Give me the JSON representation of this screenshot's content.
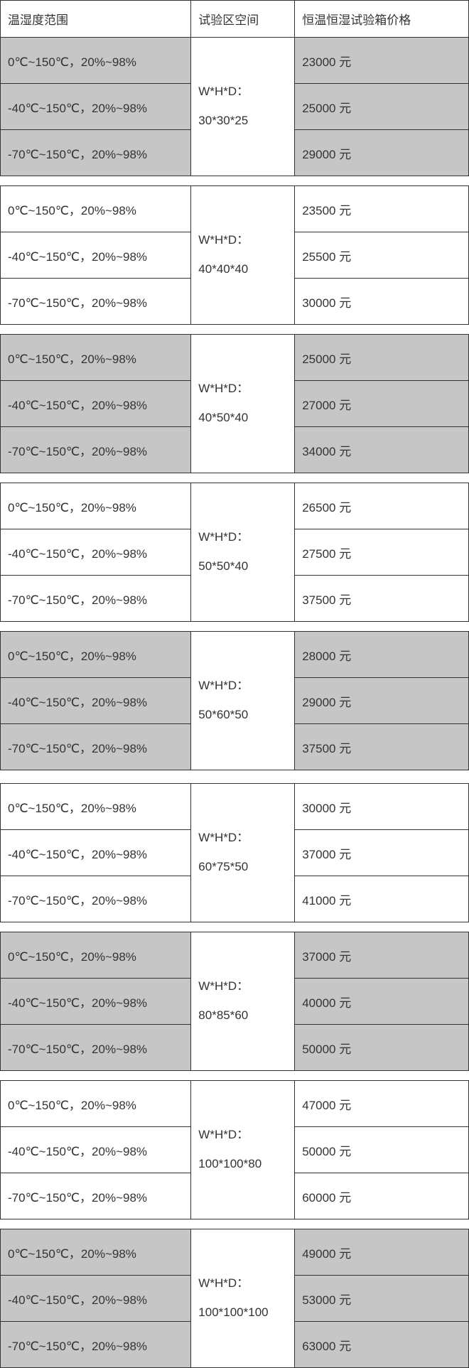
{
  "headers": {
    "range": "温湿度范围",
    "space": "试验区空间",
    "price": "恒温恒湿试验箱价格"
  },
  "ranges": {
    "r0": "0℃~150℃，20%~98%",
    "r40": "-40℃~150℃，20%~98%",
    "r70": "-70℃~150℃，20%~98%"
  },
  "space_prefix": "W*H*D：",
  "groups_a": [
    {
      "dim": "30*30*25",
      "prices": [
        "23000 元",
        "25000 元",
        "29000 元"
      ]
    },
    {
      "dim": "40*40*40",
      "prices": [
        "23500 元",
        "25500 元",
        "30000 元"
      ]
    },
    {
      "dim": "40*50*40",
      "prices": [
        "25000 元",
        "27000 元",
        "34000 元"
      ]
    },
    {
      "dim": "50*50*40",
      "prices": [
        "26500 元",
        "27500 元",
        "37500 元"
      ]
    },
    {
      "dim": "50*60*50",
      "prices": [
        "28000 元",
        "29000 元",
        "37500 元"
      ]
    }
  ],
  "groups_b": [
    {
      "dim": "60*75*50",
      "prices": [
        "30000 元",
        "37000 元",
        "41000 元"
      ]
    },
    {
      "dim": "80*85*60",
      "prices": [
        "37000 元",
        "40000 元",
        "50000 元"
      ]
    },
    {
      "dim": "100*100*80",
      "prices": [
        "47000 元",
        "50000 元",
        "60000 元"
      ]
    },
    {
      "dim": "100*100*100",
      "prices": [
        "49000 元",
        "53000 元",
        "63000 元"
      ]
    }
  ]
}
